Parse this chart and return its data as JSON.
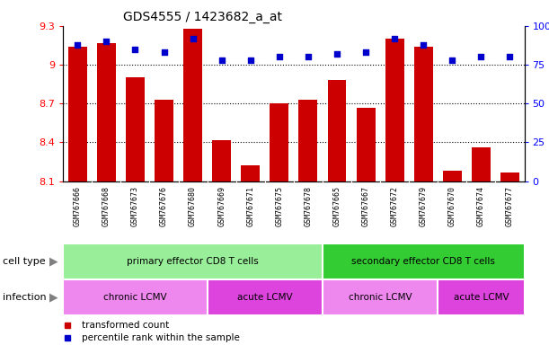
{
  "title": "GDS4555 / 1423682_a_at",
  "samples": [
    "GSM767666",
    "GSM767668",
    "GSM767673",
    "GSM767676",
    "GSM767680",
    "GSM767669",
    "GSM767671",
    "GSM767675",
    "GSM767678",
    "GSM767665",
    "GSM767667",
    "GSM767672",
    "GSM767679",
    "GSM767670",
    "GSM767674",
    "GSM767677"
  ],
  "bar_values": [
    9.14,
    9.17,
    8.9,
    8.73,
    9.28,
    8.42,
    8.22,
    8.7,
    8.73,
    8.88,
    8.67,
    9.2,
    9.14,
    8.18,
    8.36,
    8.17
  ],
  "dot_values": [
    88,
    90,
    85,
    83,
    92,
    78,
    78,
    80,
    80,
    82,
    83,
    92,
    88,
    78,
    80,
    80
  ],
  "ylim_left": [
    8.1,
    9.3
  ],
  "ylim_right": [
    0,
    100
  ],
  "yticks_left": [
    8.1,
    8.4,
    8.7,
    9.0,
    9.3
  ],
  "ytick_labels_left": [
    "8.1",
    "8.4",
    "8.7",
    "9",
    "9.3"
  ],
  "yticks_right": [
    0,
    25,
    50,
    75,
    100
  ],
  "ytick_labels_right": [
    "0",
    "25",
    "50",
    "75",
    "100%"
  ],
  "bar_color": "#cc0000",
  "dot_color": "#0000cc",
  "bg_color": "#ffffff",
  "xticklabel_bg": "#d0d0d0",
  "cell_type_groups": [
    {
      "label": "primary effector CD8 T cells",
      "start": 0,
      "end": 9,
      "color": "#99ee99"
    },
    {
      "label": "secondary effector CD8 T cells",
      "start": 9,
      "end": 16,
      "color": "#33cc33"
    }
  ],
  "infection_groups": [
    {
      "label": "chronic LCMV",
      "start": 0,
      "end": 5,
      "color": "#ee88ee"
    },
    {
      "label": "acute LCMV",
      "start": 5,
      "end": 9,
      "color": "#dd44dd"
    },
    {
      "label": "chronic LCMV",
      "start": 9,
      "end": 13,
      "color": "#ee88ee"
    },
    {
      "label": "acute LCMV",
      "start": 13,
      "end": 16,
      "color": "#dd44dd"
    }
  ],
  "row_labels": [
    "cell type",
    "infection"
  ],
  "legend_items": [
    {
      "label": "transformed count",
      "color": "#cc0000"
    },
    {
      "label": "percentile rank within the sample",
      "color": "#0000cc"
    }
  ],
  "grid_yticks": [
    8.4,
    8.7,
    9.0
  ],
  "bar_width": 0.65
}
